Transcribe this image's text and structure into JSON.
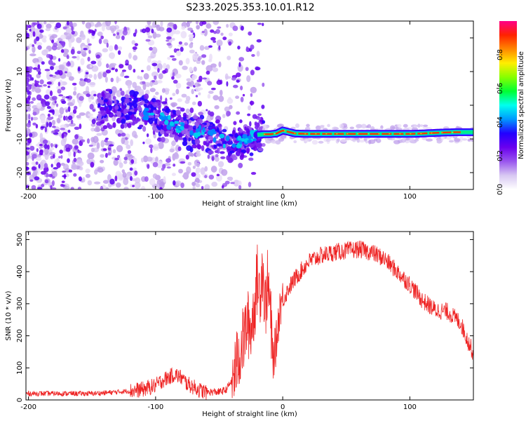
{
  "figure_title": "S233.2025.353.10.01.R12",
  "chart_data": [
    {
      "type": "heatmap",
      "title": "S233.2025.353.10.01.R12",
      "xlabel": "Height of straight line (km)",
      "ylabel": "Frequency (Hz)",
      "xlim": [
        -202,
        150
      ],
      "ylim": [
        -25,
        25
      ],
      "xticks": [
        -200,
        -100,
        0,
        100
      ],
      "yticks": [
        -20,
        -10,
        0,
        10,
        20
      ],
      "colorbar": {
        "label": "Normalized spectral amplitude",
        "range": [
          0,
          1
        ],
        "ticks": [
          0.0,
          0.2,
          0.4,
          0.6,
          0.8
        ],
        "colors": [
          "#ffffff",
          "#d8c8f2",
          "#9955ee",
          "#6a00ee",
          "#2200ff",
          "#0099ff",
          "#00ffee",
          "#00ff33",
          "#88ff00",
          "#ffee00",
          "#ff8800",
          "#ff2200",
          "#ff0088"
        ]
      },
      "scatter_region": {
        "x": [
          -202,
          -15
        ],
        "y": [
          -25,
          25
        ],
        "density": "high"
      },
      "ridge": {
        "x": [
          -140,
          -120,
          -105,
          -95,
          -85,
          -75,
          -65,
          -55,
          -45,
          -38,
          -30,
          -25,
          -20,
          -15,
          -10,
          -5,
          0,
          10,
          20,
          40,
          60,
          80,
          100,
          110,
          120,
          135,
          150
        ],
        "y": [
          -1,
          -1.5,
          -2.5,
          -4,
          -6,
          -7.5,
          -7.8,
          -8.5,
          -11,
          -11.5,
          -10,
          -9.5,
          -8.8,
          -8.6,
          -8.6,
          -8.4,
          -7.5,
          -8.4,
          -8.5,
          -8.5,
          -8.5,
          -8.5,
          -8.5,
          -8.4,
          -8.2,
          -8.0,
          -8.0
        ]
      },
      "ridge_core": {
        "x": [
          -20,
          140
        ],
        "y": -8.5,
        "amplitude": 0.9
      }
    },
    {
      "type": "line",
      "xlabel": "Height of straight line (km)",
      "ylabel": "SNR (10 * v/v)",
      "xlim": [
        -202,
        150
      ],
      "ylim": [
        0,
        525
      ],
      "xticks": [
        -200,
        -100,
        0,
        100
      ],
      "yticks": [
        0,
        100,
        200,
        300,
        400,
        500
      ],
      "series": [
        {
          "name": "SNR",
          "color": "#ee2222",
          "x": [
            -202,
            -190,
            -180,
            -170,
            -160,
            -150,
            -140,
            -130,
            -120,
            -110,
            -100,
            -95,
            -90,
            -85,
            -80,
            -75,
            -70,
            -65,
            -60,
            -55,
            -50,
            -45,
            -40,
            -35,
            -30,
            -28,
            -25,
            -22,
            -20,
            -18,
            -16,
            -14,
            -12,
            -10,
            -8,
            -5,
            -2,
            0,
            5,
            10,
            20,
            30,
            40,
            50,
            60,
            70,
            80,
            90,
            100,
            110,
            120,
            130,
            140,
            145,
            150
          ],
          "y": [
            20,
            20,
            20,
            20,
            20,
            20,
            22,
            25,
            28,
            33,
            45,
            60,
            70,
            80,
            70,
            50,
            40,
            30,
            25,
            25,
            25,
            30,
            60,
            130,
            200,
            240,
            220,
            300,
            380,
            330,
            430,
            280,
            360,
            300,
            120,
            180,
            300,
            310,
            350,
            380,
            430,
            450,
            460,
            465,
            470,
            460,
            440,
            400,
            360,
            310,
            280,
            275,
            240,
            190,
            145
          ]
        }
      ],
      "noise_amplitude": [
        {
          "from": -202,
          "to": -120,
          "amp": 8
        },
        {
          "from": -120,
          "to": -60,
          "amp": 25
        },
        {
          "from": -60,
          "to": -40,
          "amp": 12
        },
        {
          "from": -40,
          "to": -8,
          "amp": 110
        },
        {
          "from": -8,
          "to": 0,
          "amp": 70
        },
        {
          "from": 0,
          "to": 150,
          "amp": 28
        }
      ]
    }
  ]
}
